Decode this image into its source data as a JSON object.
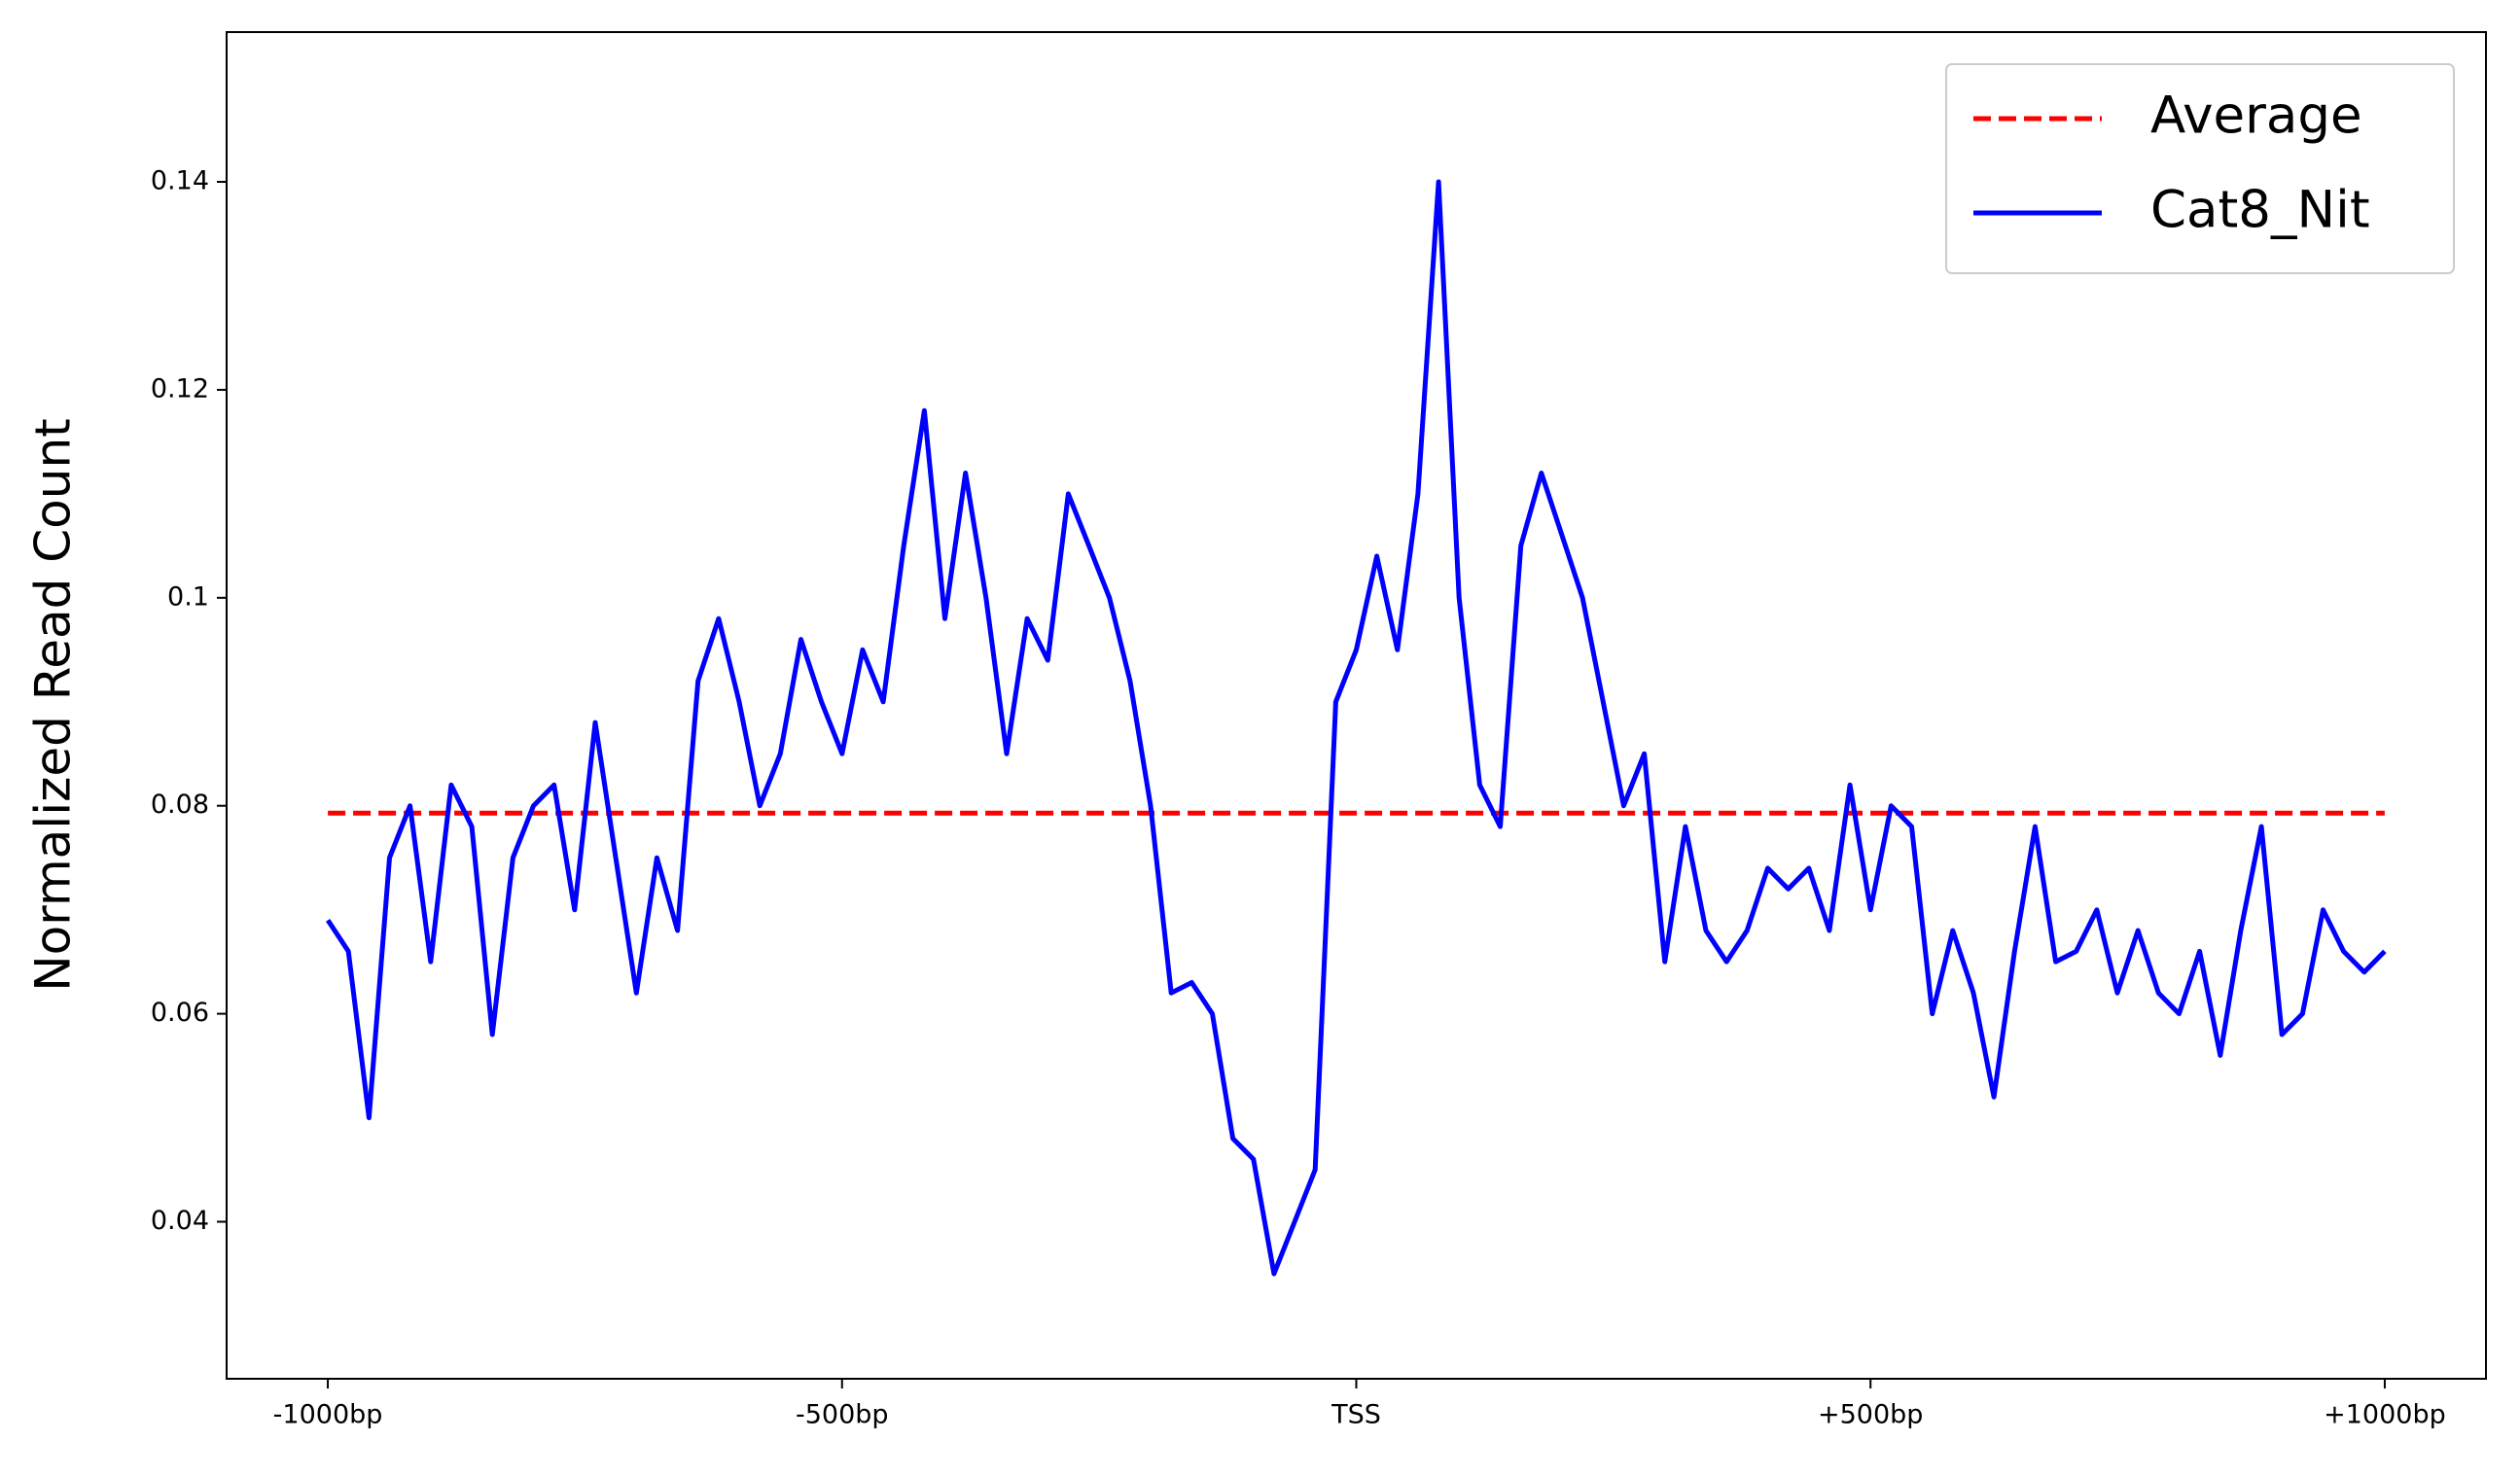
{
  "chart_data": {
    "type": "line",
    "ylabel": "Normalized Read Count",
    "xlim": [
      -1098.4,
      1098.4
    ],
    "ylim": [
      0.0249,
      0.1544
    ],
    "xticks": [
      {
        "value": -1000,
        "label": "-1000bp"
      },
      {
        "value": -500,
        "label": "-500bp"
      },
      {
        "value": 0,
        "label": "TSS"
      },
      {
        "value": 500,
        "label": "+500bp"
      },
      {
        "value": 1000,
        "label": "+1000bp"
      }
    ],
    "yticks": [
      0.04,
      0.06,
      0.08,
      0.1,
      0.12,
      0.14
    ],
    "legend": "upper right",
    "series": [
      {
        "name": "Average",
        "color": "#ff0000",
        "dashed": true,
        "x": [
          -1000,
          1000
        ],
        "values": [
          0.0793,
          0.0793
        ]
      },
      {
        "name": "Cat8_Nit",
        "color": "#0000ff",
        "dashed": false,
        "x": [
          -1000,
          -980,
          -960,
          -940,
          -920,
          -900,
          -880,
          -860,
          -840,
          -820,
          -800,
          -780,
          -760,
          -740,
          -720,
          -700,
          -680,
          -660,
          -640,
          -620,
          -600,
          -580,
          -560,
          -540,
          -520,
          -500,
          -480,
          -460,
          -440,
          -420,
          -400,
          -380,
          -360,
          -340,
          -320,
          -300,
          -280,
          -260,
          -240,
          -220,
          -200,
          -180,
          -160,
          -140,
          -120,
          -100,
          -80,
          -60,
          -40,
          -20,
          0,
          20,
          40,
          60,
          80,
          100,
          120,
          140,
          160,
          180,
          200,
          220,
          240,
          260,
          280,
          300,
          320,
          340,
          360,
          380,
          400,
          420,
          440,
          460,
          480,
          500,
          520,
          540,
          560,
          580,
          600,
          620,
          640,
          660,
          680,
          700,
          720,
          740,
          760,
          780,
          800,
          820,
          840,
          860,
          880,
          900,
          920,
          940,
          960,
          980,
          1000
        ],
        "values": [
          0.069,
          0.066,
          0.05,
          0.075,
          0.08,
          0.065,
          0.082,
          0.078,
          0.058,
          0.075,
          0.08,
          0.082,
          0.07,
          0.088,
          0.075,
          0.062,
          0.075,
          0.068,
          0.092,
          0.098,
          0.09,
          0.08,
          0.085,
          0.096,
          0.09,
          0.085,
          0.095,
          0.09,
          0.105,
          0.118,
          0.098,
          0.112,
          0.1,
          0.085,
          0.098,
          0.094,
          0.11,
          0.105,
          0.1,
          0.092,
          0.08,
          0.062,
          0.063,
          0.06,
          0.048,
          0.046,
          0.035,
          0.04,
          0.045,
          0.09,
          0.095,
          0.104,
          0.095,
          0.11,
          0.14,
          0.1,
          0.082,
          0.078,
          0.105,
          0.112,
          0.106,
          0.1,
          0.09,
          0.08,
          0.085,
          0.065,
          0.078,
          0.068,
          0.065,
          0.068,
          0.074,
          0.072,
          0.074,
          0.068,
          0.082,
          0.07,
          0.08,
          0.078,
          0.06,
          0.068,
          0.062,
          0.052,
          0.066,
          0.078,
          0.065,
          0.066,
          0.07,
          0.062,
          0.068,
          0.062,
          0.06,
          0.066,
          0.056,
          0.068,
          0.078,
          0.058,
          0.06,
          0.07,
          0.066,
          0.064,
          0.066
        ]
      }
    ]
  }
}
